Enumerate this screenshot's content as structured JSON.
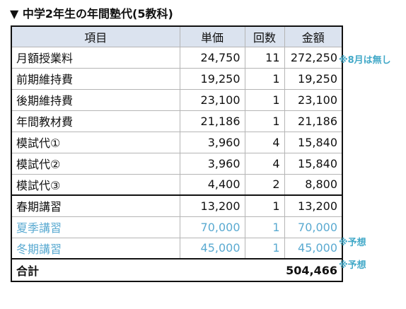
{
  "title": "▼ 中学2年生の年間塾代(5教科)",
  "headers": {
    "item": "項目",
    "price": "単価",
    "count": "回数",
    "amount": "金額"
  },
  "rows": [
    {
      "item": "月額授業料",
      "price": "24,750",
      "count": "11",
      "amount": "272,250"
    },
    {
      "item": "前期維持費",
      "price": "19,250",
      "count": "1",
      "amount": "19,250"
    },
    {
      "item": "後期維持費",
      "price": "23,100",
      "count": "1",
      "amount": "23,100"
    },
    {
      "item": "年間教材費",
      "price": "21,186",
      "count": "1",
      "amount": "21,186"
    },
    {
      "item": "模試代①",
      "price": "3,960",
      "count": "4",
      "amount": "15,840"
    },
    {
      "item": "模試代②",
      "price": "3,960",
      "count": "4",
      "amount": "15,840"
    },
    {
      "item": "模試代③",
      "price": "4,400",
      "count": "2",
      "amount": "8,800"
    },
    {
      "item": "春期講習",
      "price": "13,200",
      "count": "1",
      "amount": "13,200"
    },
    {
      "item": "夏季講習",
      "price": "70,000",
      "count": "1",
      "amount": "70,000"
    },
    {
      "item": "冬期講習",
      "price": "45,000",
      "count": "1",
      "amount": "45,000"
    }
  ],
  "total": {
    "label": "合計",
    "value": "504,466"
  },
  "notes": {
    "no_august": "※8月は無し",
    "estimate_summer": "※予想",
    "estimate_winter": "※予想"
  },
  "colors": {
    "header_bg": "#dbe3ef",
    "estimate_text": "#5aaad1",
    "note_text": "#42a9c8"
  }
}
